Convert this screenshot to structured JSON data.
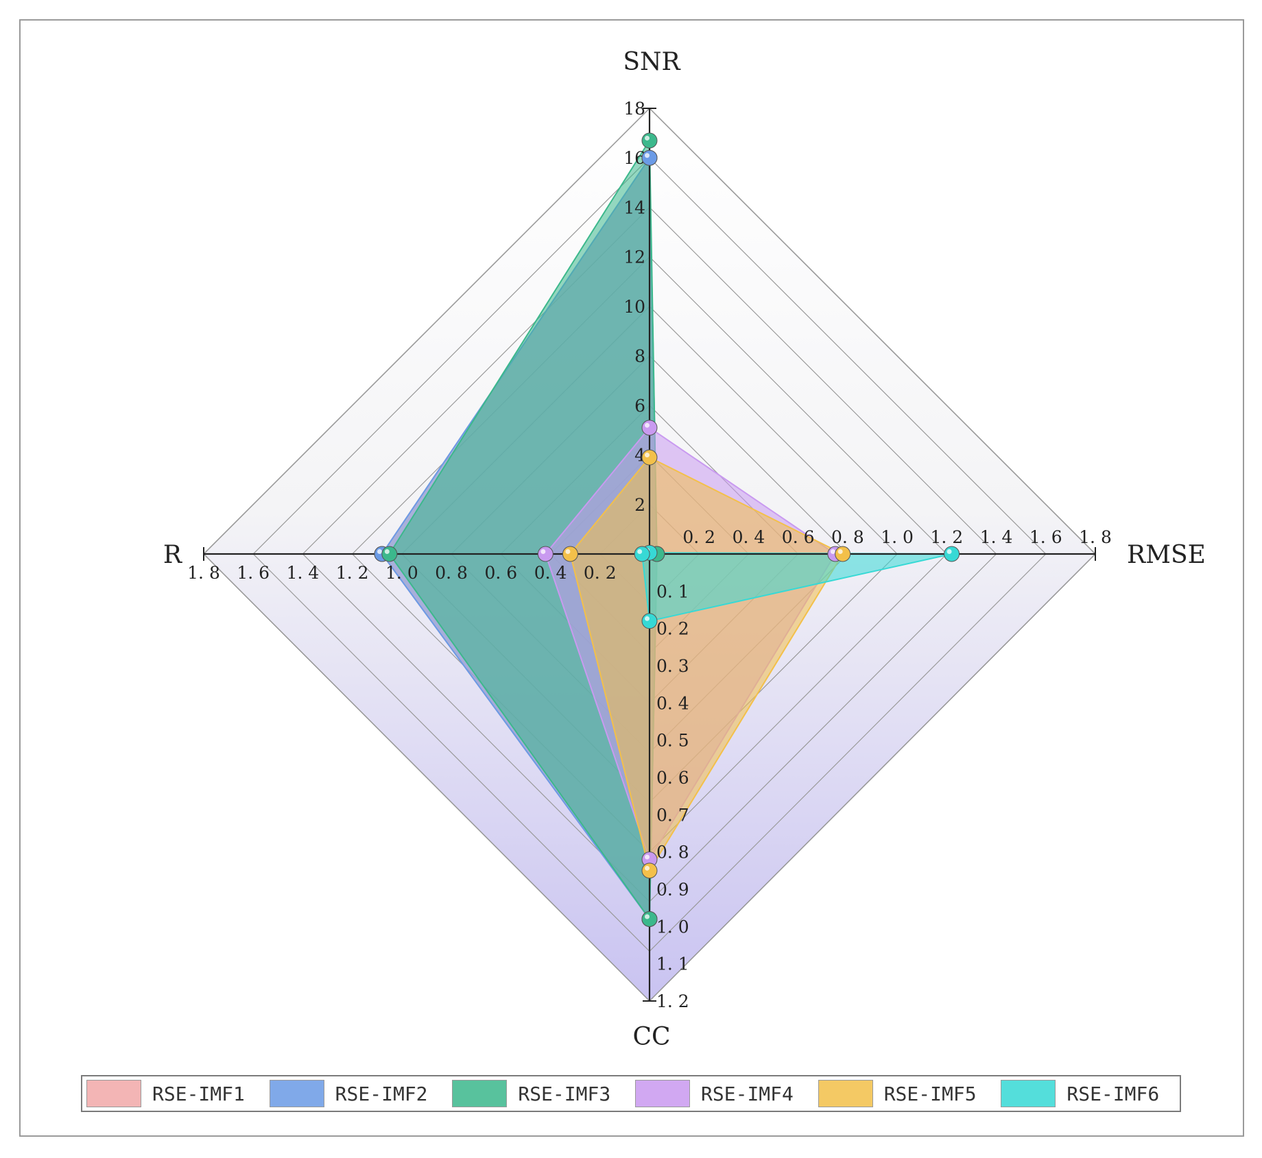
{
  "chart_data": {
    "type": "radar",
    "axes": [
      {
        "name": "SNR",
        "min": 0,
        "max": 18,
        "ticks": [
          "2",
          "4",
          "6",
          "8",
          "10",
          "12",
          "14",
          "16",
          "18"
        ],
        "tick_values": [
          2,
          4,
          6,
          8,
          10,
          12,
          14,
          16,
          18
        ]
      },
      {
        "name": "RMSE",
        "min": 0,
        "max": 1.8,
        "ticks": [
          "0. 2",
          "0. 4",
          "0. 6",
          "0. 8",
          "1. 0",
          "1. 2",
          "1. 4",
          "1. 6",
          "1. 8"
        ],
        "tick_values": [
          0.2,
          0.4,
          0.6,
          0.8,
          1.0,
          1.2,
          1.4,
          1.6,
          1.8
        ]
      },
      {
        "name": "CC",
        "min": 0,
        "max": 1.2,
        "ticks": [
          "0. 1",
          "0. 2",
          "0. 3",
          "0. 4",
          "0. 5",
          "0. 6",
          "0. 7",
          "0. 8",
          "0. 9",
          "1. 0",
          "1. 1",
          "1. 2"
        ],
        "tick_values": [
          0.1,
          0.2,
          0.3,
          0.4,
          0.5,
          0.6,
          0.7,
          0.8,
          0.9,
          1.0,
          1.1,
          1.2
        ]
      },
      {
        "name": "R",
        "min": 0,
        "max": 1.8,
        "ticks": [
          "0. 2",
          "0. 4",
          "0. 6",
          "0. 8",
          "1. 0",
          "1. 2",
          "1. 4",
          "1. 6",
          "1. 8"
        ],
        "tick_values": [
          0.2,
          0.4,
          0.6,
          0.8,
          1.0,
          1.2,
          1.4,
          1.6,
          1.8
        ]
      }
    ],
    "series": [
      {
        "name": "RSE-IMF1",
        "color": "#f2a9a9",
        "values": [
          16.0,
          0.03,
          0.98,
          1.08
        ]
      },
      {
        "name": "RSE-IMF2",
        "color": "#6b9be6",
        "values": [
          16.0,
          0.03,
          0.98,
          1.08
        ]
      },
      {
        "name": "RSE-IMF3",
        "color": "#3cb88c",
        "values": [
          16.7,
          0.03,
          0.98,
          1.05
        ]
      },
      {
        "name": "RSE-IMF4",
        "color": "#c99af0",
        "values": [
          5.1,
          0.75,
          0.82,
          0.42
        ]
      },
      {
        "name": "RSE-IMF5",
        "color": "#f3c04a",
        "values": [
          3.9,
          0.78,
          0.85,
          0.32
        ]
      },
      {
        "name": "RSE-IMF6",
        "color": "#37d9d5",
        "values": [
          0.05,
          1.22,
          0.18,
          0.03
        ]
      }
    ],
    "legend_position": "bottom",
    "grid": true
  }
}
